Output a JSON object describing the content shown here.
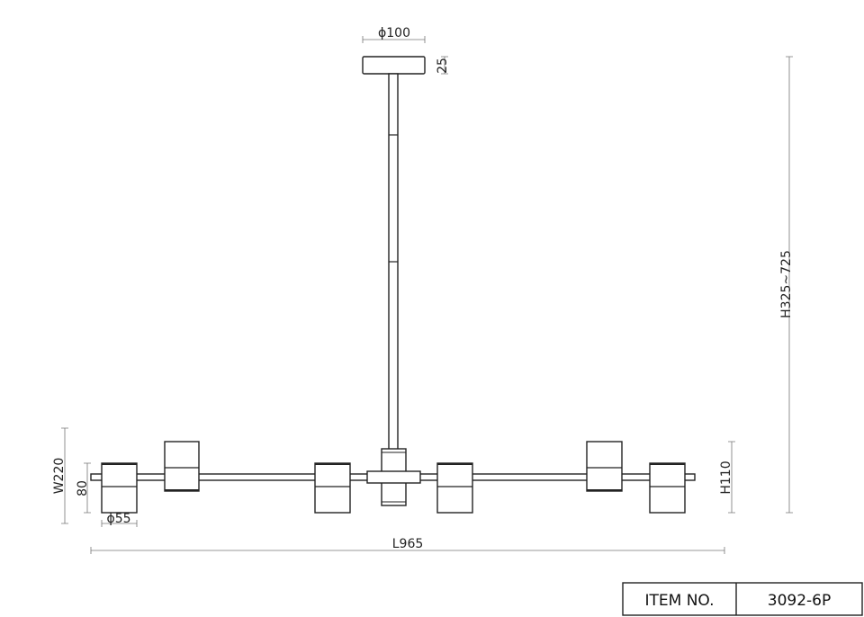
{
  "dimensions": {
    "canopy_diameter": "ϕ100",
    "canopy_height": "25",
    "overall_height": "H325~725",
    "width": "W220",
    "shade_height_small": "80",
    "shade_diameter": "ϕ55",
    "length": "L965",
    "shade_height": "H110"
  },
  "title_block": {
    "label": "ITEM NO.",
    "value": "3092-6P"
  }
}
